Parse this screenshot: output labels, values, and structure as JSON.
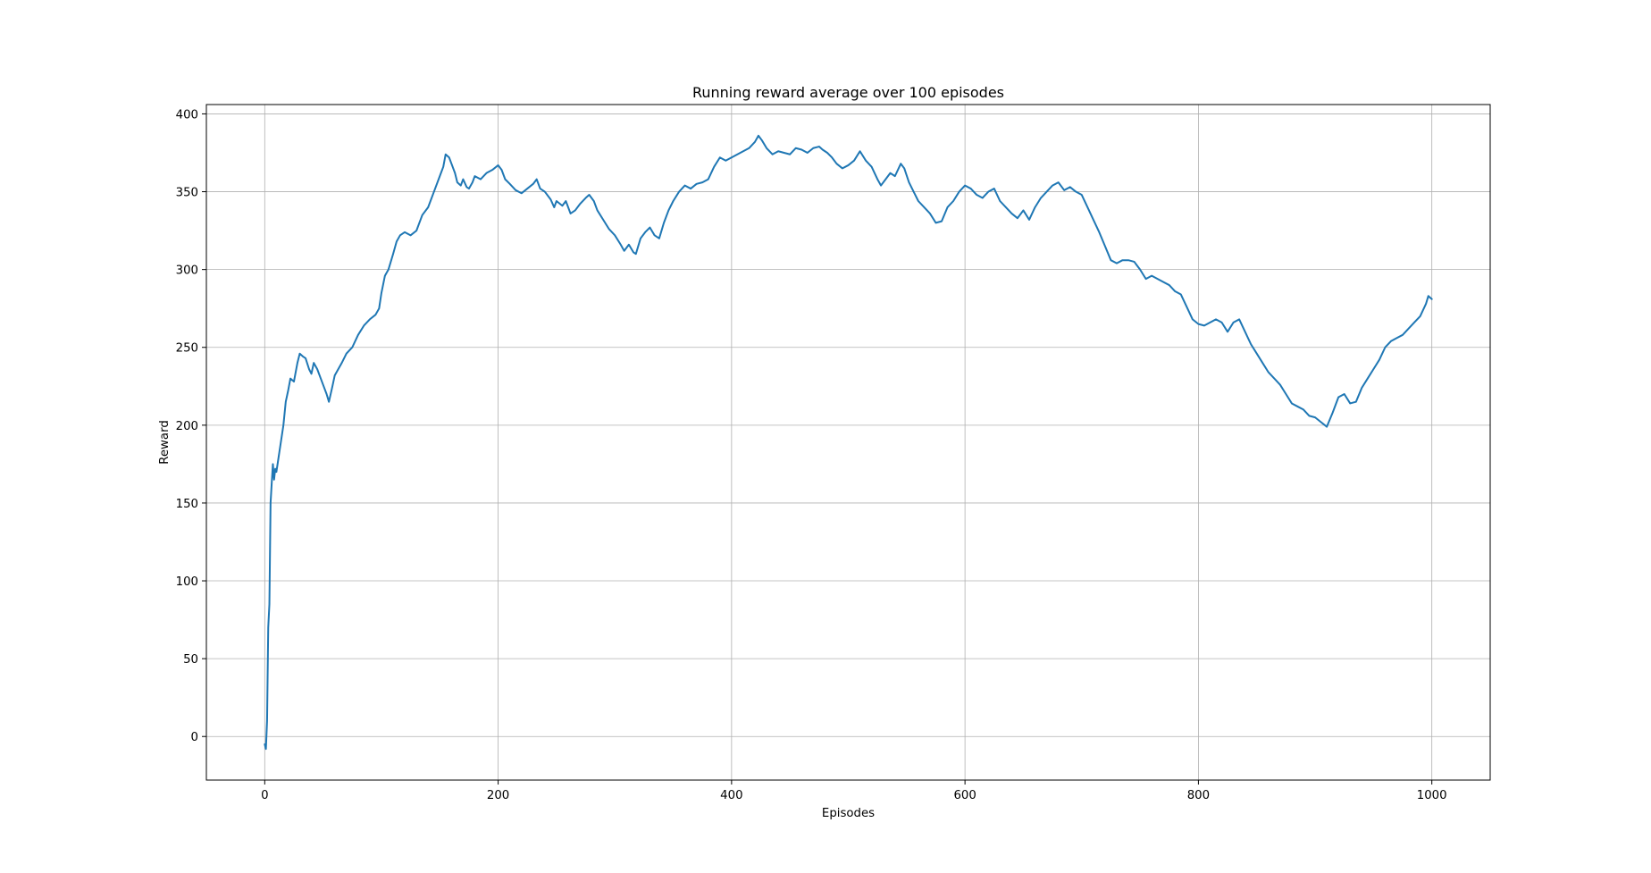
{
  "chart_data": {
    "type": "line",
    "title": "Running reward average over 100 episodes",
    "xlabel": "Episodes",
    "ylabel": "Reward",
    "xlim": [
      -50,
      1050
    ],
    "ylim": [
      -28,
      406
    ],
    "x_ticks": [
      0,
      200,
      400,
      600,
      800,
      1000
    ],
    "y_ticks": [
      0,
      50,
      100,
      150,
      200,
      250,
      300,
      350,
      400
    ],
    "grid": true,
    "legend": "none",
    "color": "#1f77b4",
    "series": [
      {
        "points": [
          [
            0,
            -5
          ],
          [
            1,
            -8
          ],
          [
            2,
            10
          ],
          [
            3,
            70
          ],
          [
            4,
            85
          ],
          [
            5,
            150
          ],
          [
            6,
            163
          ],
          [
            7,
            175
          ],
          [
            8,
            165
          ],
          [
            9,
            172
          ],
          [
            10,
            170
          ],
          [
            12,
            180
          ],
          [
            14,
            190
          ],
          [
            16,
            200
          ],
          [
            18,
            215
          ],
          [
            20,
            222
          ],
          [
            22,
            230
          ],
          [
            25,
            228
          ],
          [
            28,
            240
          ],
          [
            30,
            246
          ],
          [
            33,
            244
          ],
          [
            35,
            243
          ],
          [
            38,
            236
          ],
          [
            40,
            233
          ],
          [
            42,
            240
          ],
          [
            45,
            236
          ],
          [
            48,
            230
          ],
          [
            50,
            226
          ],
          [
            53,
            220
          ],
          [
            55,
            215
          ],
          [
            58,
            225
          ],
          [
            60,
            232
          ],
          [
            63,
            236
          ],
          [
            66,
            240
          ],
          [
            70,
            246
          ],
          [
            75,
            250
          ],
          [
            80,
            258
          ],
          [
            85,
            264
          ],
          [
            90,
            268
          ],
          [
            95,
            271
          ],
          [
            98,
            275
          ],
          [
            100,
            285
          ],
          [
            103,
            296
          ],
          [
            106,
            300
          ],
          [
            110,
            310
          ],
          [
            113,
            318
          ],
          [
            116,
            322
          ],
          [
            120,
            324
          ],
          [
            125,
            322
          ],
          [
            130,
            325
          ],
          [
            135,
            335
          ],
          [
            140,
            340
          ],
          [
            145,
            350
          ],
          [
            150,
            360
          ],
          [
            153,
            366
          ],
          [
            155,
            374
          ],
          [
            158,
            372
          ],
          [
            160,
            368
          ],
          [
            163,
            362
          ],
          [
            165,
            356
          ],
          [
            168,
            354
          ],
          [
            170,
            358
          ],
          [
            173,
            353
          ],
          [
            175,
            352
          ],
          [
            178,
            356
          ],
          [
            180,
            360
          ],
          [
            185,
            358
          ],
          [
            190,
            362
          ],
          [
            195,
            364
          ],
          [
            200,
            367
          ],
          [
            203,
            364
          ],
          [
            206,
            358
          ],
          [
            210,
            355
          ],
          [
            215,
            351
          ],
          [
            220,
            349
          ],
          [
            225,
            352
          ],
          [
            230,
            355
          ],
          [
            233,
            358
          ],
          [
            236,
            352
          ],
          [
            240,
            350
          ],
          [
            245,
            345
          ],
          [
            248,
            340
          ],
          [
            250,
            344
          ],
          [
            255,
            341
          ],
          [
            258,
            344
          ],
          [
            262,
            336
          ],
          [
            266,
            338
          ],
          [
            270,
            342
          ],
          [
            275,
            346
          ],
          [
            278,
            348
          ],
          [
            282,
            344
          ],
          [
            285,
            338
          ],
          [
            290,
            332
          ],
          [
            295,
            326
          ],
          [
            300,
            322
          ],
          [
            305,
            316
          ],
          [
            308,
            312
          ],
          [
            312,
            316
          ],
          [
            316,
            311
          ],
          [
            318,
            310
          ],
          [
            322,
            320
          ],
          [
            326,
            324
          ],
          [
            330,
            327
          ],
          [
            334,
            322
          ],
          [
            338,
            320
          ],
          [
            342,
            330
          ],
          [
            346,
            338
          ],
          [
            350,
            344
          ],
          [
            355,
            350
          ],
          [
            360,
            354
          ],
          [
            365,
            352
          ],
          [
            370,
            355
          ],
          [
            375,
            356
          ],
          [
            380,
            358
          ],
          [
            385,
            366
          ],
          [
            390,
            372
          ],
          [
            395,
            370
          ],
          [
            400,
            372
          ],
          [
            405,
            374
          ],
          [
            410,
            376
          ],
          [
            415,
            378
          ],
          [
            420,
            382
          ],
          [
            423,
            386
          ],
          [
            426,
            383
          ],
          [
            430,
            378
          ],
          [
            435,
            374
          ],
          [
            440,
            376
          ],
          [
            445,
            375
          ],
          [
            450,
            374
          ],
          [
            455,
            378
          ],
          [
            460,
            377
          ],
          [
            465,
            375
          ],
          [
            470,
            378
          ],
          [
            475,
            379
          ],
          [
            478,
            377
          ],
          [
            482,
            375
          ],
          [
            486,
            372
          ],
          [
            490,
            368
          ],
          [
            495,
            365
          ],
          [
            500,
            367
          ],
          [
            505,
            370
          ],
          [
            510,
            376
          ],
          [
            515,
            370
          ],
          [
            520,
            366
          ],
          [
            525,
            358
          ],
          [
            528,
            354
          ],
          [
            532,
            358
          ],
          [
            536,
            362
          ],
          [
            540,
            360
          ],
          [
            545,
            368
          ],
          [
            548,
            365
          ],
          [
            552,
            356
          ],
          [
            556,
            350
          ],
          [
            560,
            344
          ],
          [
            565,
            340
          ],
          [
            570,
            336
          ],
          [
            575,
            330
          ],
          [
            580,
            331
          ],
          [
            585,
            340
          ],
          [
            590,
            344
          ],
          [
            595,
            350
          ],
          [
            600,
            354
          ],
          [
            605,
            352
          ],
          [
            610,
            348
          ],
          [
            615,
            346
          ],
          [
            620,
            350
          ],
          [
            625,
            352
          ],
          [
            630,
            344
          ],
          [
            635,
            340
          ],
          [
            640,
            336
          ],
          [
            645,
            333
          ],
          [
            650,
            338
          ],
          [
            655,
            332
          ],
          [
            660,
            340
          ],
          [
            665,
            346
          ],
          [
            670,
            350
          ],
          [
            675,
            354
          ],
          [
            680,
            356
          ],
          [
            685,
            351
          ],
          [
            690,
            353
          ],
          [
            695,
            350
          ],
          [
            700,
            348
          ],
          [
            705,
            340
          ],
          [
            710,
            332
          ],
          [
            715,
            324
          ],
          [
            720,
            315
          ],
          [
            725,
            306
          ],
          [
            730,
            304
          ],
          [
            735,
            306
          ],
          [
            740,
            306
          ],
          [
            745,
            305
          ],
          [
            750,
            300
          ],
          [
            755,
            294
          ],
          [
            760,
            296
          ],
          [
            765,
            294
          ],
          [
            770,
            292
          ],
          [
            775,
            290
          ],
          [
            780,
            286
          ],
          [
            785,
            284
          ],
          [
            790,
            276
          ],
          [
            795,
            268
          ],
          [
            800,
            265
          ],
          [
            805,
            264
          ],
          [
            810,
            266
          ],
          [
            815,
            268
          ],
          [
            820,
            266
          ],
          [
            825,
            260
          ],
          [
            830,
            266
          ],
          [
            835,
            268
          ],
          [
            840,
            260
          ],
          [
            845,
            252
          ],
          [
            850,
            246
          ],
          [
            855,
            240
          ],
          [
            860,
            234
          ],
          [
            865,
            230
          ],
          [
            870,
            226
          ],
          [
            875,
            220
          ],
          [
            880,
            214
          ],
          [
            885,
            212
          ],
          [
            890,
            210
          ],
          [
            895,
            206
          ],
          [
            900,
            205
          ],
          [
            905,
            202
          ],
          [
            910,
            199
          ],
          [
            915,
            208
          ],
          [
            920,
            218
          ],
          [
            925,
            220
          ],
          [
            930,
            214
          ],
          [
            935,
            215
          ],
          [
            940,
            224
          ],
          [
            945,
            230
          ],
          [
            950,
            236
          ],
          [
            955,
            242
          ],
          [
            960,
            250
          ],
          [
            965,
            254
          ],
          [
            970,
            256
          ],
          [
            975,
            258
          ],
          [
            980,
            262
          ],
          [
            985,
            266
          ],
          [
            990,
            270
          ],
          [
            995,
            278
          ],
          [
            997,
            283
          ],
          [
            1000,
            281
          ]
        ]
      }
    ]
  }
}
